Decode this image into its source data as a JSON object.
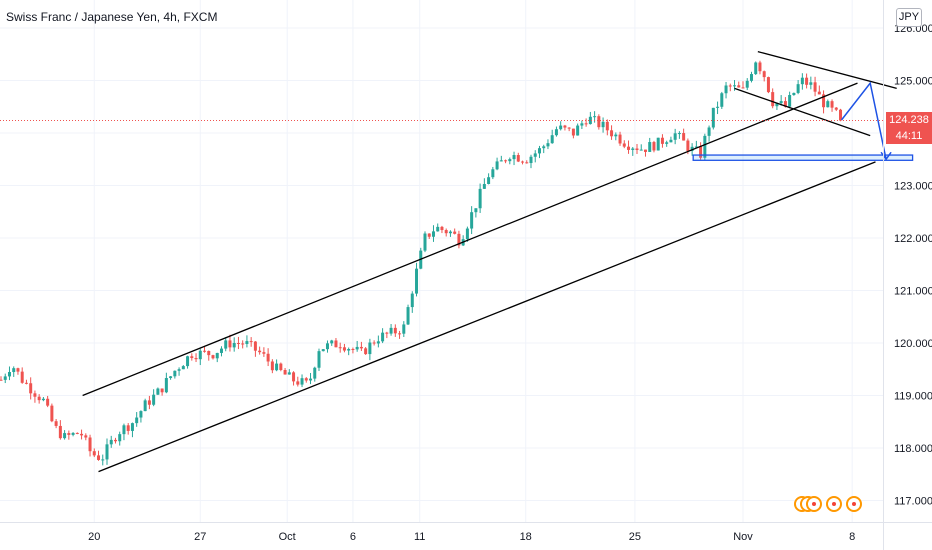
{
  "header": {
    "title": "Swiss Franc / Japanese Yen, 4h, FXCM"
  },
  "price_scale": {
    "currency": "JPY"
  },
  "last_price": {
    "value": "124.238",
    "countdown": "44:11"
  },
  "events": {
    "count": 5
  },
  "colors": {
    "up": "#26a69a",
    "down": "#ef5350",
    "drawing": "#000000",
    "projection": "#1e53e5",
    "grid": "#f0f3fa",
    "last_price_line": "#ef5350"
  },
  "chart_data": {
    "type": "candlestick",
    "title": "Swiss Franc / Japanese Yen, 4h, FXCM",
    "xlabel": "",
    "ylabel": "",
    "ylim": [
      116.95,
      126.45
    ],
    "y_ticks": [
      "117.000",
      "118.000",
      "119.000",
      "120.000",
      "121.000",
      "122.000",
      "123.000",
      "124.000",
      "125.000",
      "126.000"
    ],
    "x_ticks": [
      {
        "label": "20",
        "bar": 88
      },
      {
        "label": "27",
        "bar": 188
      },
      {
        "label": "Oct",
        "bar": 270
      },
      {
        "label": "6",
        "bar": 332
      },
      {
        "label": "11",
        "bar": 395
      },
      {
        "label": "18",
        "bar": 495
      },
      {
        "label": "25",
        "bar": 598
      },
      {
        "label": "Nov",
        "bar": 700
      },
      {
        "label": "8",
        "bar": 803
      }
    ],
    "bar_count": 795,
    "candle_spacing": 4,
    "anchors": [
      [
        0,
        119.3
      ],
      [
        10,
        119.6
      ],
      [
        20,
        119.3
      ],
      [
        40,
        118.9
      ],
      [
        50,
        118.4
      ],
      [
        60,
        118.2
      ],
      [
        75,
        118.3
      ],
      [
        85,
        117.9
      ],
      [
        95,
        117.8
      ],
      [
        110,
        118.3
      ],
      [
        125,
        118.5
      ],
      [
        135,
        118.8
      ],
      [
        150,
        119.1
      ],
      [
        165,
        119.5
      ],
      [
        180,
        119.8
      ],
      [
        200,
        119.8
      ],
      [
        215,
        120.0
      ],
      [
        230,
        120.0
      ],
      [
        245,
        119.8
      ],
      [
        260,
        119.5
      ],
      [
        275,
        119.3
      ],
      [
        290,
        119.2
      ],
      [
        300,
        119.9
      ],
      [
        320,
        120.0
      ],
      [
        340,
        119.8
      ],
      [
        355,
        120.1
      ],
      [
        370,
        120.2
      ],
      [
        380,
        120.3
      ],
      [
        390,
        121.2
      ],
      [
        400,
        122.0
      ],
      [
        410,
        122.2
      ],
      [
        425,
        122.1
      ],
      [
        433,
        121.95
      ],
      [
        445,
        122.5
      ],
      [
        460,
        123.2
      ],
      [
        480,
        123.6
      ],
      [
        495,
        123.5
      ],
      [
        510,
        123.7
      ],
      [
        525,
        124.1
      ],
      [
        540,
        124.0
      ],
      [
        553,
        124.3
      ],
      [
        570,
        124.1
      ],
      [
        590,
        123.8
      ],
      [
        605,
        123.7
      ],
      [
        620,
        123.8
      ],
      [
        635,
        124.0
      ],
      [
        650,
        123.7
      ],
      [
        660,
        123.6
      ],
      [
        670,
        124.3
      ],
      [
        685,
        124.9
      ],
      [
        700,
        124.8
      ],
      [
        712,
        125.4
      ],
      [
        720,
        125.1
      ],
      [
        728,
        124.6
      ],
      [
        740,
        124.5
      ],
      [
        755,
        125.0
      ],
      [
        765,
        124.9
      ],
      [
        775,
        124.6
      ],
      [
        785,
        124.4
      ],
      [
        795,
        124.238
      ]
    ],
    "trend_lines": [
      {
        "name": "channel-upper",
        "points": [
          [
            77,
            119.0
          ],
          [
            808,
            124.95
          ]
        ]
      },
      {
        "name": "channel-lower",
        "points": [
          [
            92,
            117.55
          ],
          [
            825,
            123.45
          ]
        ]
      },
      {
        "name": "flag-upper",
        "points": [
          [
            714,
            125.55
          ],
          [
            845,
            124.85
          ]
        ]
      },
      {
        "name": "flag-lower",
        "points": [
          [
            692,
            124.85
          ],
          [
            820,
            123.95
          ]
        ]
      }
    ],
    "support_zone": {
      "from": 653,
      "to": 860,
      "y_low": 123.48,
      "y_high": 123.58
    },
    "projection": [
      [
        793,
        124.25
      ],
      [
        820,
        124.95
      ],
      [
        835,
        123.5
      ]
    ]
  }
}
